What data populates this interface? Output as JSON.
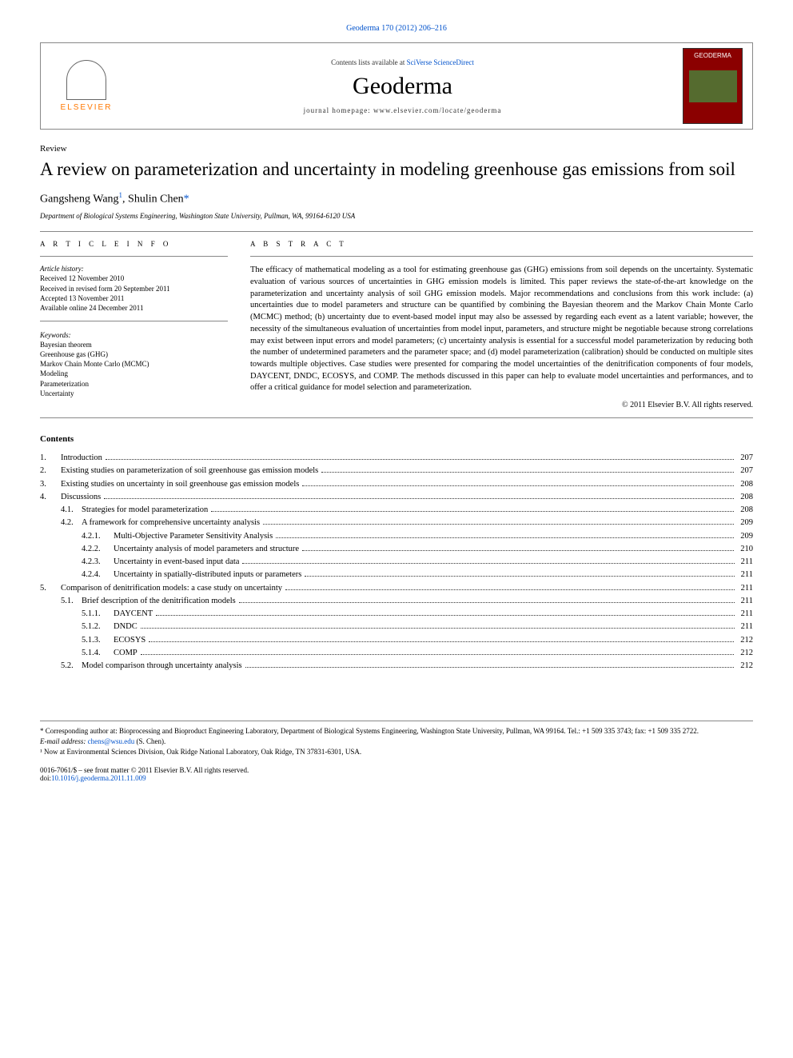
{
  "journal_ref": "Geoderma 170 (2012) 206–216",
  "header": {
    "elsevier": "ELSEVIER",
    "contents_available": "Contents lists available at ",
    "sciverse": "SciVerse ScienceDirect",
    "journal_name": "Geoderma",
    "homepage_label": "journal homepage: www.elsevier.com/locate/geoderma",
    "cover_title": "GEODERMA"
  },
  "article_type": "Review",
  "title": "A review on parameterization and uncertainty in modeling greenhouse gas emissions from soil",
  "authors": {
    "a1": "Gangsheng Wang",
    "a1_sup": "1",
    "a2": "Shulin Chen",
    "a2_mark": "*"
  },
  "affiliation": "Department of Biological Systems Engineering, Washington State University, Pullman, WA, 99164-6120 USA",
  "article_info": {
    "header": "A R T I C L E   I N F O",
    "history_label": "Article history:",
    "received": "Received 12 November 2010",
    "revised": "Received in revised form 20 September 2011",
    "accepted": "Accepted 13 November 2011",
    "online": "Available online 24 December 2011",
    "keywords_label": "Keywords:",
    "keywords": [
      "Bayesian theorem",
      "Greenhouse gas (GHG)",
      "Markov Chain Monte Carlo (MCMC)",
      "Modeling",
      "Parameterization",
      "Uncertainty"
    ]
  },
  "abstract": {
    "header": "A B S T R A C T",
    "text": "The efficacy of mathematical modeling as a tool for estimating greenhouse gas (GHG) emissions from soil depends on the uncertainty. Systematic evaluation of various sources of uncertainties in GHG emission models is limited. This paper reviews the state-of-the-art knowledge on the parameterization and uncertainty analysis of soil GHG emission models. Major recommendations and conclusions from this work include: (a) uncertainties due to model parameters and structure can be quantified by combining the Bayesian theorem and the Markov Chain Monte Carlo (MCMC) method; (b) uncertainty due to event-based model input may also be assessed by regarding each event as a latent variable; however, the necessity of the simultaneous evaluation of uncertainties from model input, parameters, and structure might be negotiable because strong correlations may exist between input errors and model parameters; (c) uncertainty analysis is essential for a successful model parameterization by reducing both the number of undetermined parameters and the parameter space; and (d) model parameterization (calibration) should be conducted on multiple sites towards multiple objectives. Case studies were presented for comparing the model uncertainties of the denitrification components of four models, DAYCENT, DNDC, ECOSYS, and COMP. The methods discussed in this paper can help to evaluate model uncertainties and performances, and to offer a critical guidance for model selection and parameterization.",
    "copyright": "© 2011 Elsevier B.V. All rights reserved."
  },
  "contents": {
    "header": "Contents",
    "items": [
      {
        "num": "1.",
        "title": "Introduction",
        "page": "207",
        "level": 1
      },
      {
        "num": "2.",
        "title": "Existing studies on parameterization of soil greenhouse gas emission models",
        "page": "207",
        "level": 1
      },
      {
        "num": "3.",
        "title": "Existing studies on uncertainty in soil greenhouse gas emission models",
        "page": "208",
        "level": 1
      },
      {
        "num": "4.",
        "title": "Discussions",
        "page": "208",
        "level": 1
      },
      {
        "num": "4.1.",
        "title": "Strategies for model parameterization",
        "page": "208",
        "level": 2
      },
      {
        "num": "4.2.",
        "title": "A framework for comprehensive uncertainty analysis",
        "page": "209",
        "level": 2
      },
      {
        "num": "4.2.1.",
        "title": "Multi-Objective Parameter Sensitivity Analysis",
        "page": "209",
        "level": 3
      },
      {
        "num": "4.2.2.",
        "title": "Uncertainty analysis of model parameters and structure",
        "page": "210",
        "level": 3
      },
      {
        "num": "4.2.3.",
        "title": "Uncertainty in event-based input data",
        "page": "211",
        "level": 3
      },
      {
        "num": "4.2.4.",
        "title": "Uncertainty in spatially-distributed inputs or parameters",
        "page": "211",
        "level": 3
      },
      {
        "num": "5.",
        "title": "Comparison of denitrification models: a case study on uncertainty",
        "page": "211",
        "level": 1
      },
      {
        "num": "5.1.",
        "title": "Brief description of the denitrification models",
        "page": "211",
        "level": 2
      },
      {
        "num": "5.1.1.",
        "title": "DAYCENT",
        "page": "211",
        "level": 3
      },
      {
        "num": "5.1.2.",
        "title": "DNDC",
        "page": "211",
        "level": 3
      },
      {
        "num": "5.1.3.",
        "title": "ECOSYS",
        "page": "212",
        "level": 3
      },
      {
        "num": "5.1.4.",
        "title": "COMP",
        "page": "212",
        "level": 3
      },
      {
        "num": "5.2.",
        "title": "Model comparison through uncertainty analysis",
        "page": "212",
        "level": 2
      }
    ]
  },
  "footnotes": {
    "corr": "* Corresponding author at: Bioprocessing and Bioproduct Engineering Laboratory, Department of Biological Systems Engineering, Washington State University, Pullman, WA 99164. Tel.: +1 509 335 3743; fax: +1 509 335 2722.",
    "email_label": "E-mail address: ",
    "email": "chens@wsu.edu",
    "email_suffix": " (S. Chen).",
    "note1": "¹ Now at Environmental Sciences Division, Oak Ridge National Laboratory, Oak Ridge, TN 37831-6301, USA."
  },
  "bottom": {
    "frontmatter": "0016-7061/$ – see front matter © 2011 Elsevier B.V. All rights reserved.",
    "doi_label": "doi:",
    "doi": "10.1016/j.geoderma.2011.11.009"
  },
  "colors": {
    "link": "#0052cc",
    "text": "#000000",
    "elsevier_orange": "#ff7700",
    "cover_bg": "#8b0000"
  },
  "typography": {
    "title_fontsize": 23,
    "journal_fontsize": 30,
    "body_fontsize": 10.5,
    "small_fontsize": 9
  }
}
